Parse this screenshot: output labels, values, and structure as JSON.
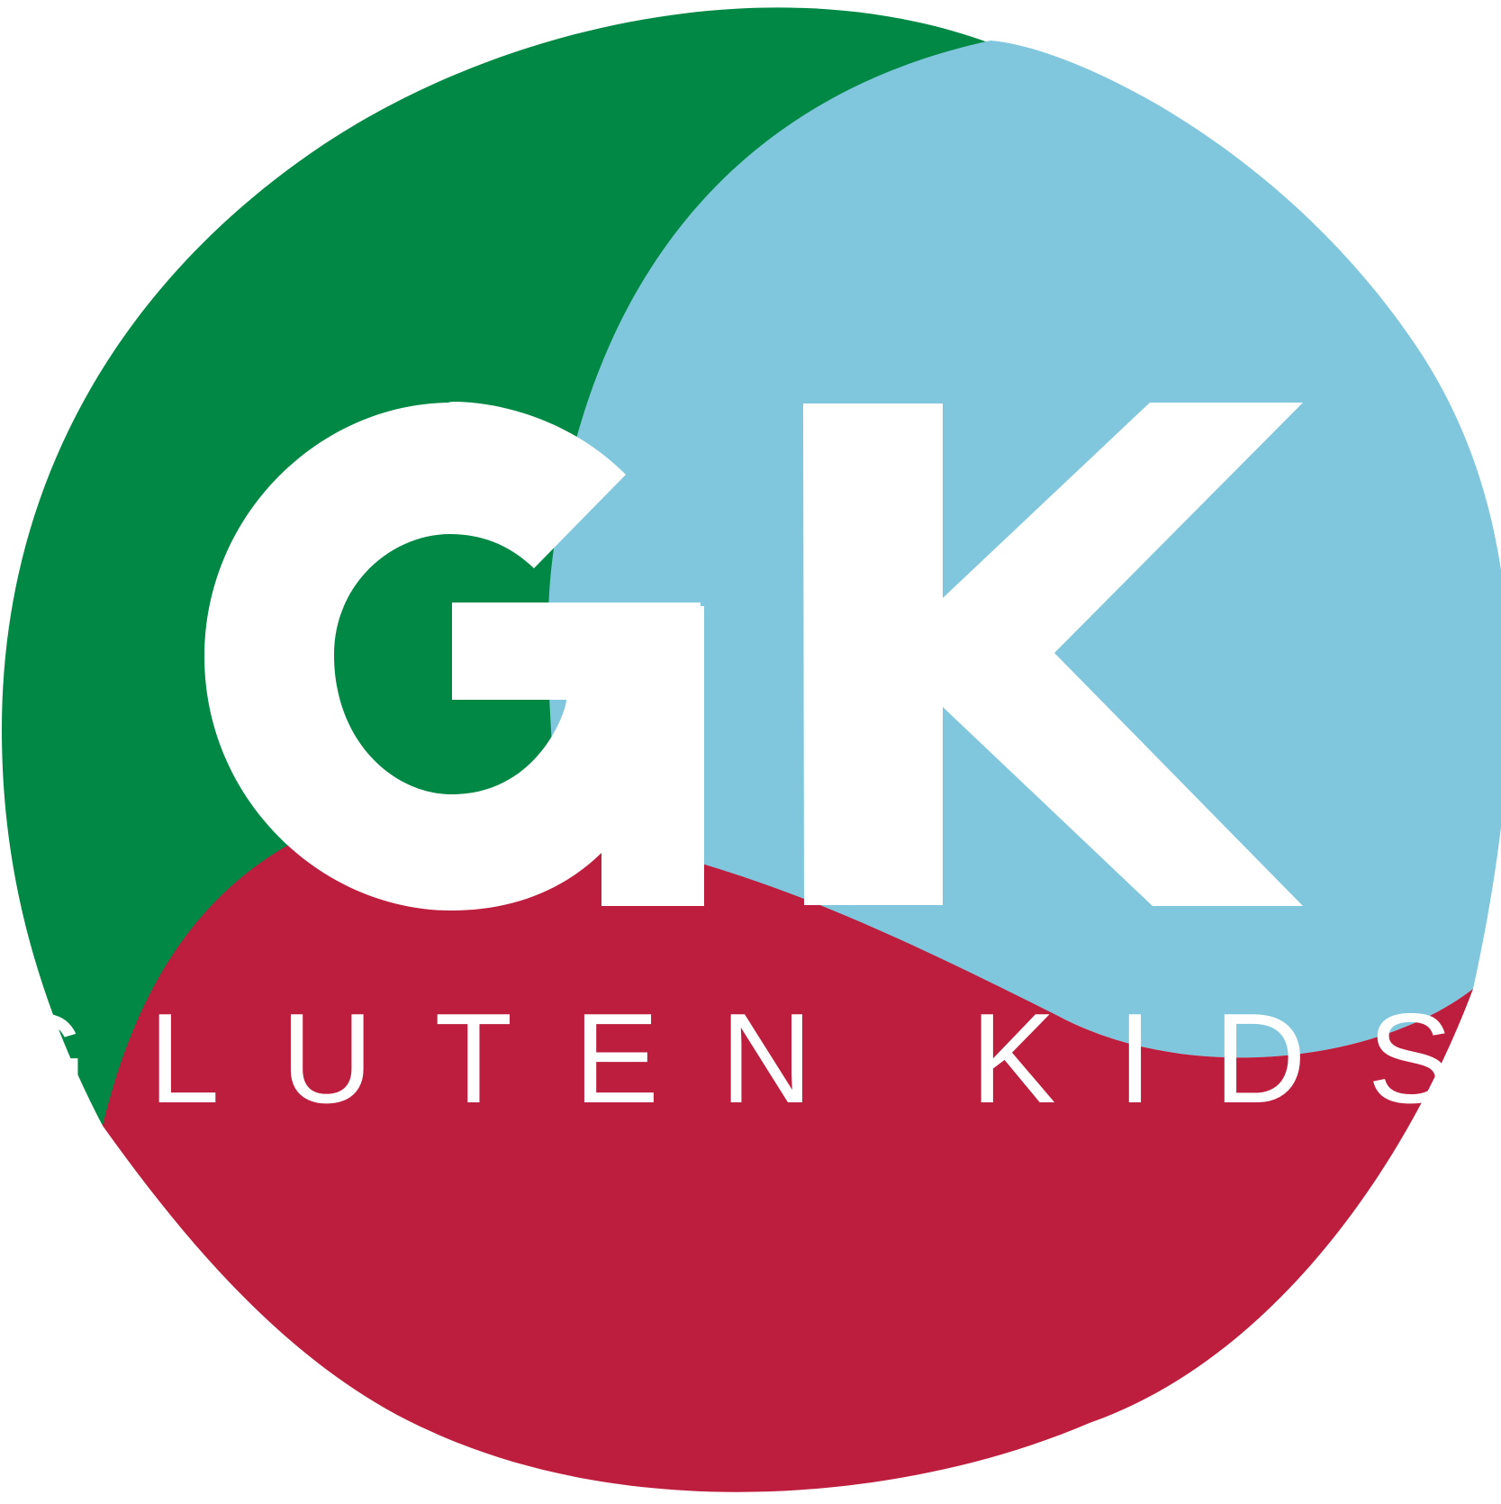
{
  "logo": {
    "monogram": "GK",
    "tagline": "GLUTEN KIDS"
  },
  "colors": {
    "green": "#008844",
    "light_blue": "#80C7DD",
    "red": "#BE1E3D",
    "white": "#FFFFFF"
  }
}
